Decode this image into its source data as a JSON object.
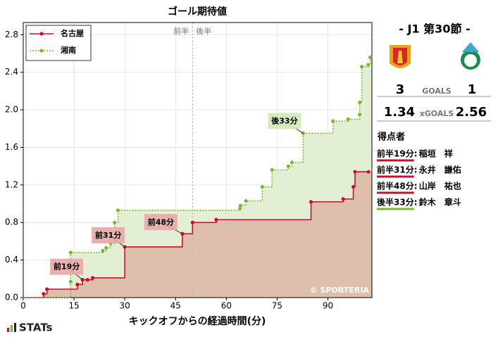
{
  "chart_data": {
    "type": "step",
    "title": "ゴール期待値",
    "x_label": "キックオフからの経過時間(分)",
    "xlim": [
      0,
      103
    ],
    "ylim": [
      0,
      2.93
    ],
    "xticks": [
      0,
      15,
      30,
      45,
      60,
      75,
      90
    ],
    "yticks": [
      {
        "value": 0,
        "label": "0.0"
      },
      0.4,
      0.8,
      1.2,
      1.6,
      {
        "value": 2,
        "label": "2.0"
      },
      2.4,
      2.8
    ],
    "grid": true,
    "legend": "upper left",
    "halftime": {
      "x": 50,
      "labels": [
        "前半",
        "後半"
      ]
    },
    "series": [
      {
        "name": "名古屋",
        "color": "#c8102e",
        "fill": "#dcbca9",
        "x": [
          6,
          7,
          16,
          17.5,
          19,
          20.5,
          30,
          47,
          50,
          57,
          85,
          94.5,
          97.5,
          98,
          102
        ],
        "values": [
          0.04,
          0.09,
          0.14,
          0.19,
          0.19,
          0.21,
          0.54,
          0.68,
          0.8,
          0.83,
          1.02,
          1.05,
          1.18,
          1.34,
          1.34
        ]
      },
      {
        "name": "湘南",
        "color": "#7cb82f",
        "fill": "#e3efd4",
        "x": [
          14,
          14,
          23.5,
          24.5,
          25.8,
          27,
          28,
          64,
          64.2,
          65.8,
          70.6,
          73.5,
          78.3,
          79.4,
          82.7,
          91.5,
          96,
          99.4,
          99.4,
          100,
          101.9,
          102.5
        ],
        "values": [
          0.17,
          0.48,
          0.5,
          0.53,
          0.58,
          0.8,
          0.93,
          0.95,
          0.98,
          1.03,
          1.18,
          1.36,
          1.4,
          1.44,
          1.75,
          1.88,
          1.9,
          1.95,
          2.08,
          2.46,
          2.48,
          2.56
        ]
      }
    ],
    "annotations": [
      {
        "text": "前19分",
        "series": 0,
        "point": 3
      },
      {
        "text": "前31分",
        "series": 0,
        "point": 6
      },
      {
        "text": "前48分",
        "series": 0,
        "point": 7
      },
      {
        "text": "後33分",
        "series": 1,
        "point": 14
      }
    ],
    "credit": "© SPORTERIA"
  },
  "match": {
    "round": "- J1 第30節 -",
    "goals_label": "GOALS",
    "xg_label": "xGOALS",
    "home": {
      "goals": 3,
      "xg": 1.34
    },
    "away": {
      "goals": 1,
      "xg": 2.56
    },
    "scorers_title": "得点者",
    "scorers": [
      {
        "time": "前半19分",
        "name": "稲垣　祥",
        "color": "#c8102e"
      },
      {
        "time": "前半31分",
        "name": "永井　謙佑",
        "color": "#c8102e"
      },
      {
        "time": "前半48分",
        "name": "山岸　祐也",
        "color": "#c8102e"
      },
      {
        "time": "後半33分",
        "name": "鈴木　章斗",
        "color": "#7cb82f"
      }
    ]
  },
  "logo": "STATs"
}
